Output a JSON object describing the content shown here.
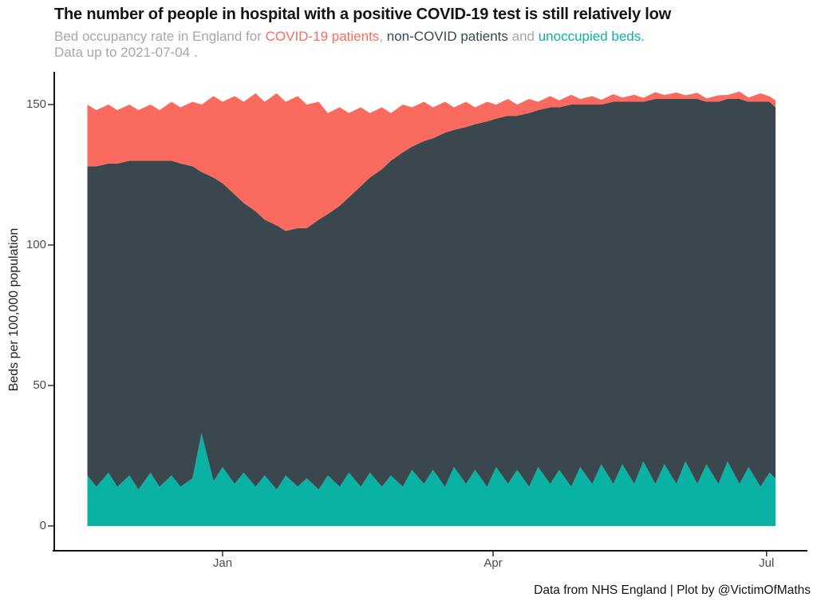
{
  "title": "The number of people in hospital with a positive COVID-19 test is still relatively low",
  "subtitle": {
    "prefix": "Bed occupancy rate in England for ",
    "covid_label": "COVID-19 patients",
    "sep1": ", ",
    "noncovid_label": "non-COVID patients",
    "sep2": " and ",
    "unoccupied_label": "unoccupied beds.",
    "line2": "Data up to 2021-07-04 ."
  },
  "footer": "Data from NHS England | Plot by @VictimOfMaths",
  "colors": {
    "covid": "#FB6A5F",
    "noncovid": "#3A474E",
    "unoccupied": "#09B2A3",
    "subtitle_gray": "#A7A7A7",
    "axis_line": "#141414",
    "tick_text": "#4C4C4C"
  },
  "chart_data": {
    "type": "area",
    "stacked": true,
    "title": "The number of people in hospital with a positive COVID-19 test is still relatively low",
    "subtitle": "Bed occupancy rate in England for COVID-19 patients, non-COVID patients and unoccupied beds. Data up to 2021-07-04.",
    "xlabel": "",
    "ylabel": "Beds per 100,000 population",
    "ylim": [
      0,
      160
    ],
    "grid": false,
    "legend_position": "none (legend encoded as colored words in subtitle)",
    "x_unit": "days since 2020-11-17 (estimated start of plotted range; range ends 2021-07-04)",
    "yticks": [
      {
        "value": 0,
        "label": "0"
      },
      {
        "value": 50,
        "label": "50"
      },
      {
        "value": 100,
        "label": "100"
      },
      {
        "value": 150,
        "label": "150"
      }
    ],
    "xticks": [
      {
        "day": 45,
        "label": "Jan"
      },
      {
        "day": 135,
        "label": "Apr"
      },
      {
        "day": 226,
        "label": "Jul"
      }
    ],
    "x_days": [
      0,
      3,
      7,
      10,
      14,
      17,
      21,
      24,
      28,
      31,
      35,
      38,
      42,
      45,
      49,
      52,
      56,
      59,
      63,
      66,
      70,
      73,
      77,
      80,
      84,
      87,
      91,
      94,
      98,
      101,
      105,
      108,
      112,
      115,
      119,
      122,
      126,
      129,
      133,
      136,
      140,
      143,
      147,
      150,
      154,
      157,
      161,
      164,
      168,
      171,
      175,
      178,
      182,
      185,
      189,
      192,
      196,
      199,
      203,
      206,
      210,
      213,
      217,
      220,
      224,
      227,
      229
    ],
    "series": [
      {
        "id": "unoccupied-beds",
        "name": "unoccupied beds",
        "color": "#09B2A3",
        "note": "weekly oscillation ~13-23 with Christmas-day spike ~33",
        "values": [
          18,
          14,
          19,
          14,
          18,
          13,
          19,
          14,
          18,
          14,
          17,
          33,
          16,
          21,
          15,
          19,
          14,
          18,
          13,
          18,
          14,
          17,
          13,
          18,
          14,
          19,
          14,
          19,
          14,
          18,
          14,
          20,
          15,
          20,
          14,
          21,
          15,
          20,
          14,
          21,
          15,
          20,
          14,
          21,
          15,
          20,
          14,
          21,
          15,
          22,
          15,
          22,
          15,
          23,
          15,
          22,
          15,
          23,
          15,
          22,
          15,
          23,
          15,
          21,
          14,
          19,
          17
        ]
      },
      {
        "id": "non-covid-patients",
        "name": "non-COVID patients",
        "color": "#3A474E",
        "note": "dips to ~87-92 in mid/late January then recovers to ~130-137",
        "values": [
          110,
          114,
          110,
          115,
          112,
          117,
          111,
          116,
          112,
          115,
          111,
          93,
          108,
          101,
          103,
          96,
          98,
          91,
          94,
          87,
          92,
          89,
          96,
          93,
          100,
          98,
          107,
          105,
          113,
          112,
          119,
          115,
          122,
          118,
          126,
          120,
          127,
          123,
          130,
          124,
          131,
          126,
          133,
          127,
          134,
          129,
          136,
          129,
          135,
          128,
          136,
          129,
          136,
          128,
          137,
          130,
          137,
          129,
          137,
          129,
          136,
          129,
          137,
          130,
          137,
          132,
          132
        ]
      },
      {
        "id": "covid-19-patients",
        "name": "COVID-19 patients",
        "color": "#FB6A5F",
        "note": "peaks ~47 in mid-January 2021, falls to ~1.5-3 by May-July",
        "values": [
          22,
          20,
          21,
          19,
          20,
          18,
          20,
          18,
          21,
          20,
          23,
          24,
          29,
          29,
          35,
          36,
          42,
          42,
          47,
          46,
          47,
          44,
          42,
          36,
          35,
          30,
          28,
          23,
          22,
          17,
          17,
          14,
          14,
          11,
          11,
          8,
          9,
          6,
          7,
          5,
          6,
          4,
          5,
          3,
          4,
          2.5,
          3.5,
          2,
          3,
          1.7,
          2.7,
          1.5,
          2.5,
          1.4,
          2.4,
          1.4,
          2.3,
          1.3,
          2.2,
          1.2,
          2.3,
          1.4,
          2.6,
          1.5,
          3,
          1.9,
          2.5
        ]
      }
    ]
  }
}
